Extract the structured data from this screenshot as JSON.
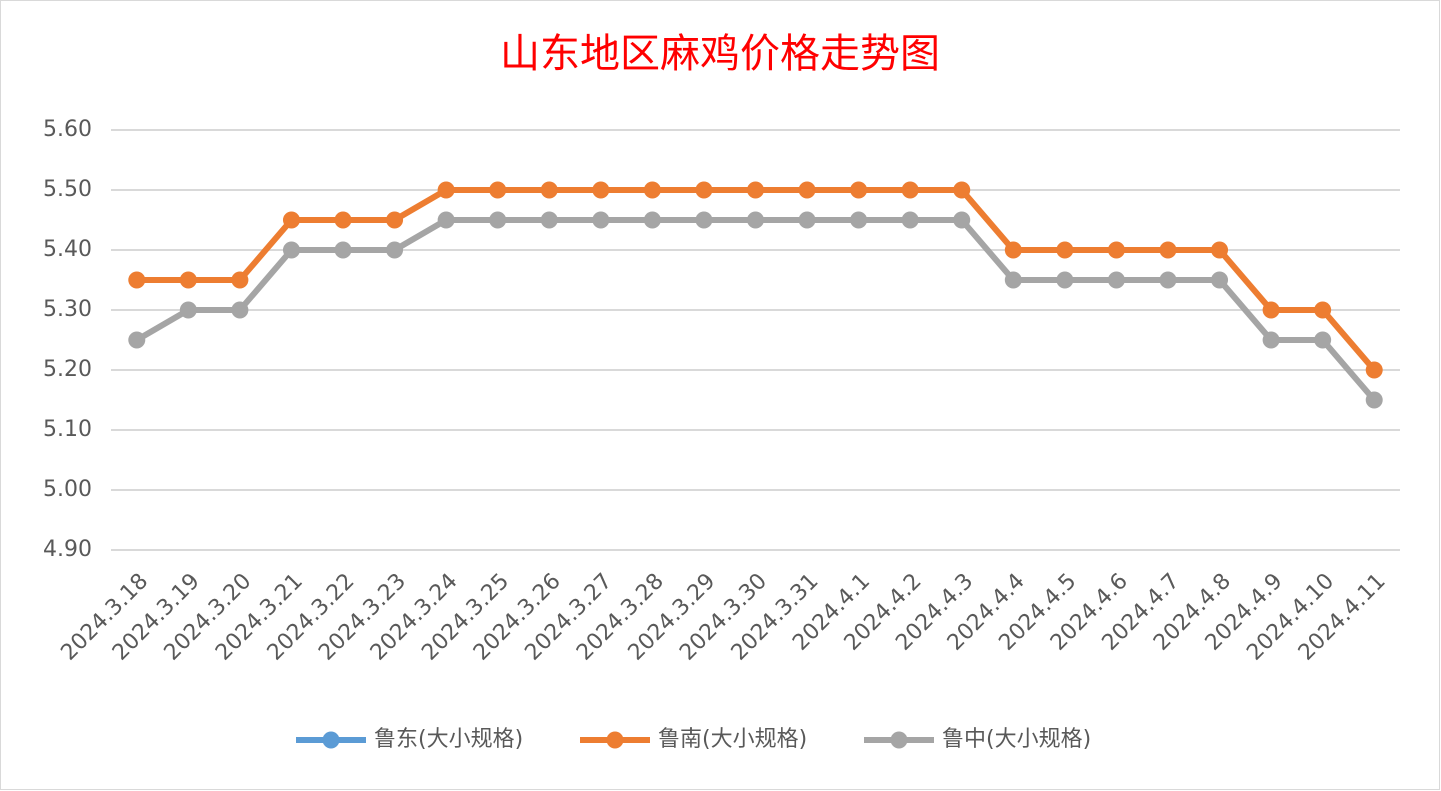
{
  "chart_data": {
    "type": "line",
    "title": "山东地区麻鸡价格走势图",
    "categories": [
      "2024.3.18",
      "2024.3.19",
      "2024.3.20",
      "2024.3.21",
      "2024.3.22",
      "2024.3.23",
      "2024.3.24",
      "2024.3.25",
      "2024.3.26",
      "2024.3.27",
      "2024.3.28",
      "2024.3.29",
      "2024.3.30",
      "2024.3.31",
      "2024.4.1",
      "2024.4.2",
      "2024.4.3",
      "2024.4.4",
      "2024.4.5",
      "2024.4.6",
      "2024.4.7",
      "2024.4.8",
      "2024.4.9",
      "2024.4.10",
      "2024.4.11"
    ],
    "series": [
      {
        "name": "鲁东(大小规格)",
        "color": "#5b9bd5",
        "values": [
          null,
          null,
          null,
          null,
          null,
          null,
          null,
          null,
          null,
          null,
          null,
          null,
          null,
          null,
          null,
          null,
          null,
          null,
          null,
          null,
          null,
          null,
          null,
          null,
          null
        ]
      },
      {
        "name": "鲁南(大小规格)",
        "color": "#ed7d31",
        "values": [
          5.35,
          5.35,
          5.35,
          5.45,
          5.45,
          5.45,
          5.5,
          5.5,
          5.5,
          5.5,
          5.5,
          5.5,
          5.5,
          5.5,
          5.5,
          5.5,
          5.5,
          5.4,
          5.4,
          5.4,
          5.4,
          5.4,
          5.3,
          5.3,
          5.2
        ]
      },
      {
        "name": "鲁中(大小规格)",
        "color": "#a5a5a5",
        "values": [
          5.25,
          5.3,
          5.3,
          5.4,
          5.4,
          5.4,
          5.45,
          5.45,
          5.45,
          5.45,
          5.45,
          5.45,
          5.45,
          5.45,
          5.45,
          5.45,
          5.45,
          5.35,
          5.35,
          5.35,
          5.35,
          5.35,
          5.25,
          5.25,
          5.15
        ]
      }
    ],
    "ylim": [
      4.9,
      5.6
    ],
    "yticks": [
      {
        "value": 4.9,
        "label": "4.90"
      },
      {
        "value": 5.0,
        "label": "5.00"
      },
      {
        "value": 5.1,
        "label": "5.10"
      },
      {
        "value": 5.2,
        "label": "5.20"
      },
      {
        "value": 5.3,
        "label": "5.30"
      },
      {
        "value": 5.4,
        "label": "5.40"
      },
      {
        "value": 5.5,
        "label": "5.50"
      },
      {
        "value": 5.6,
        "label": "5.60"
      }
    ],
    "grid": true,
    "legend": "bottom"
  }
}
